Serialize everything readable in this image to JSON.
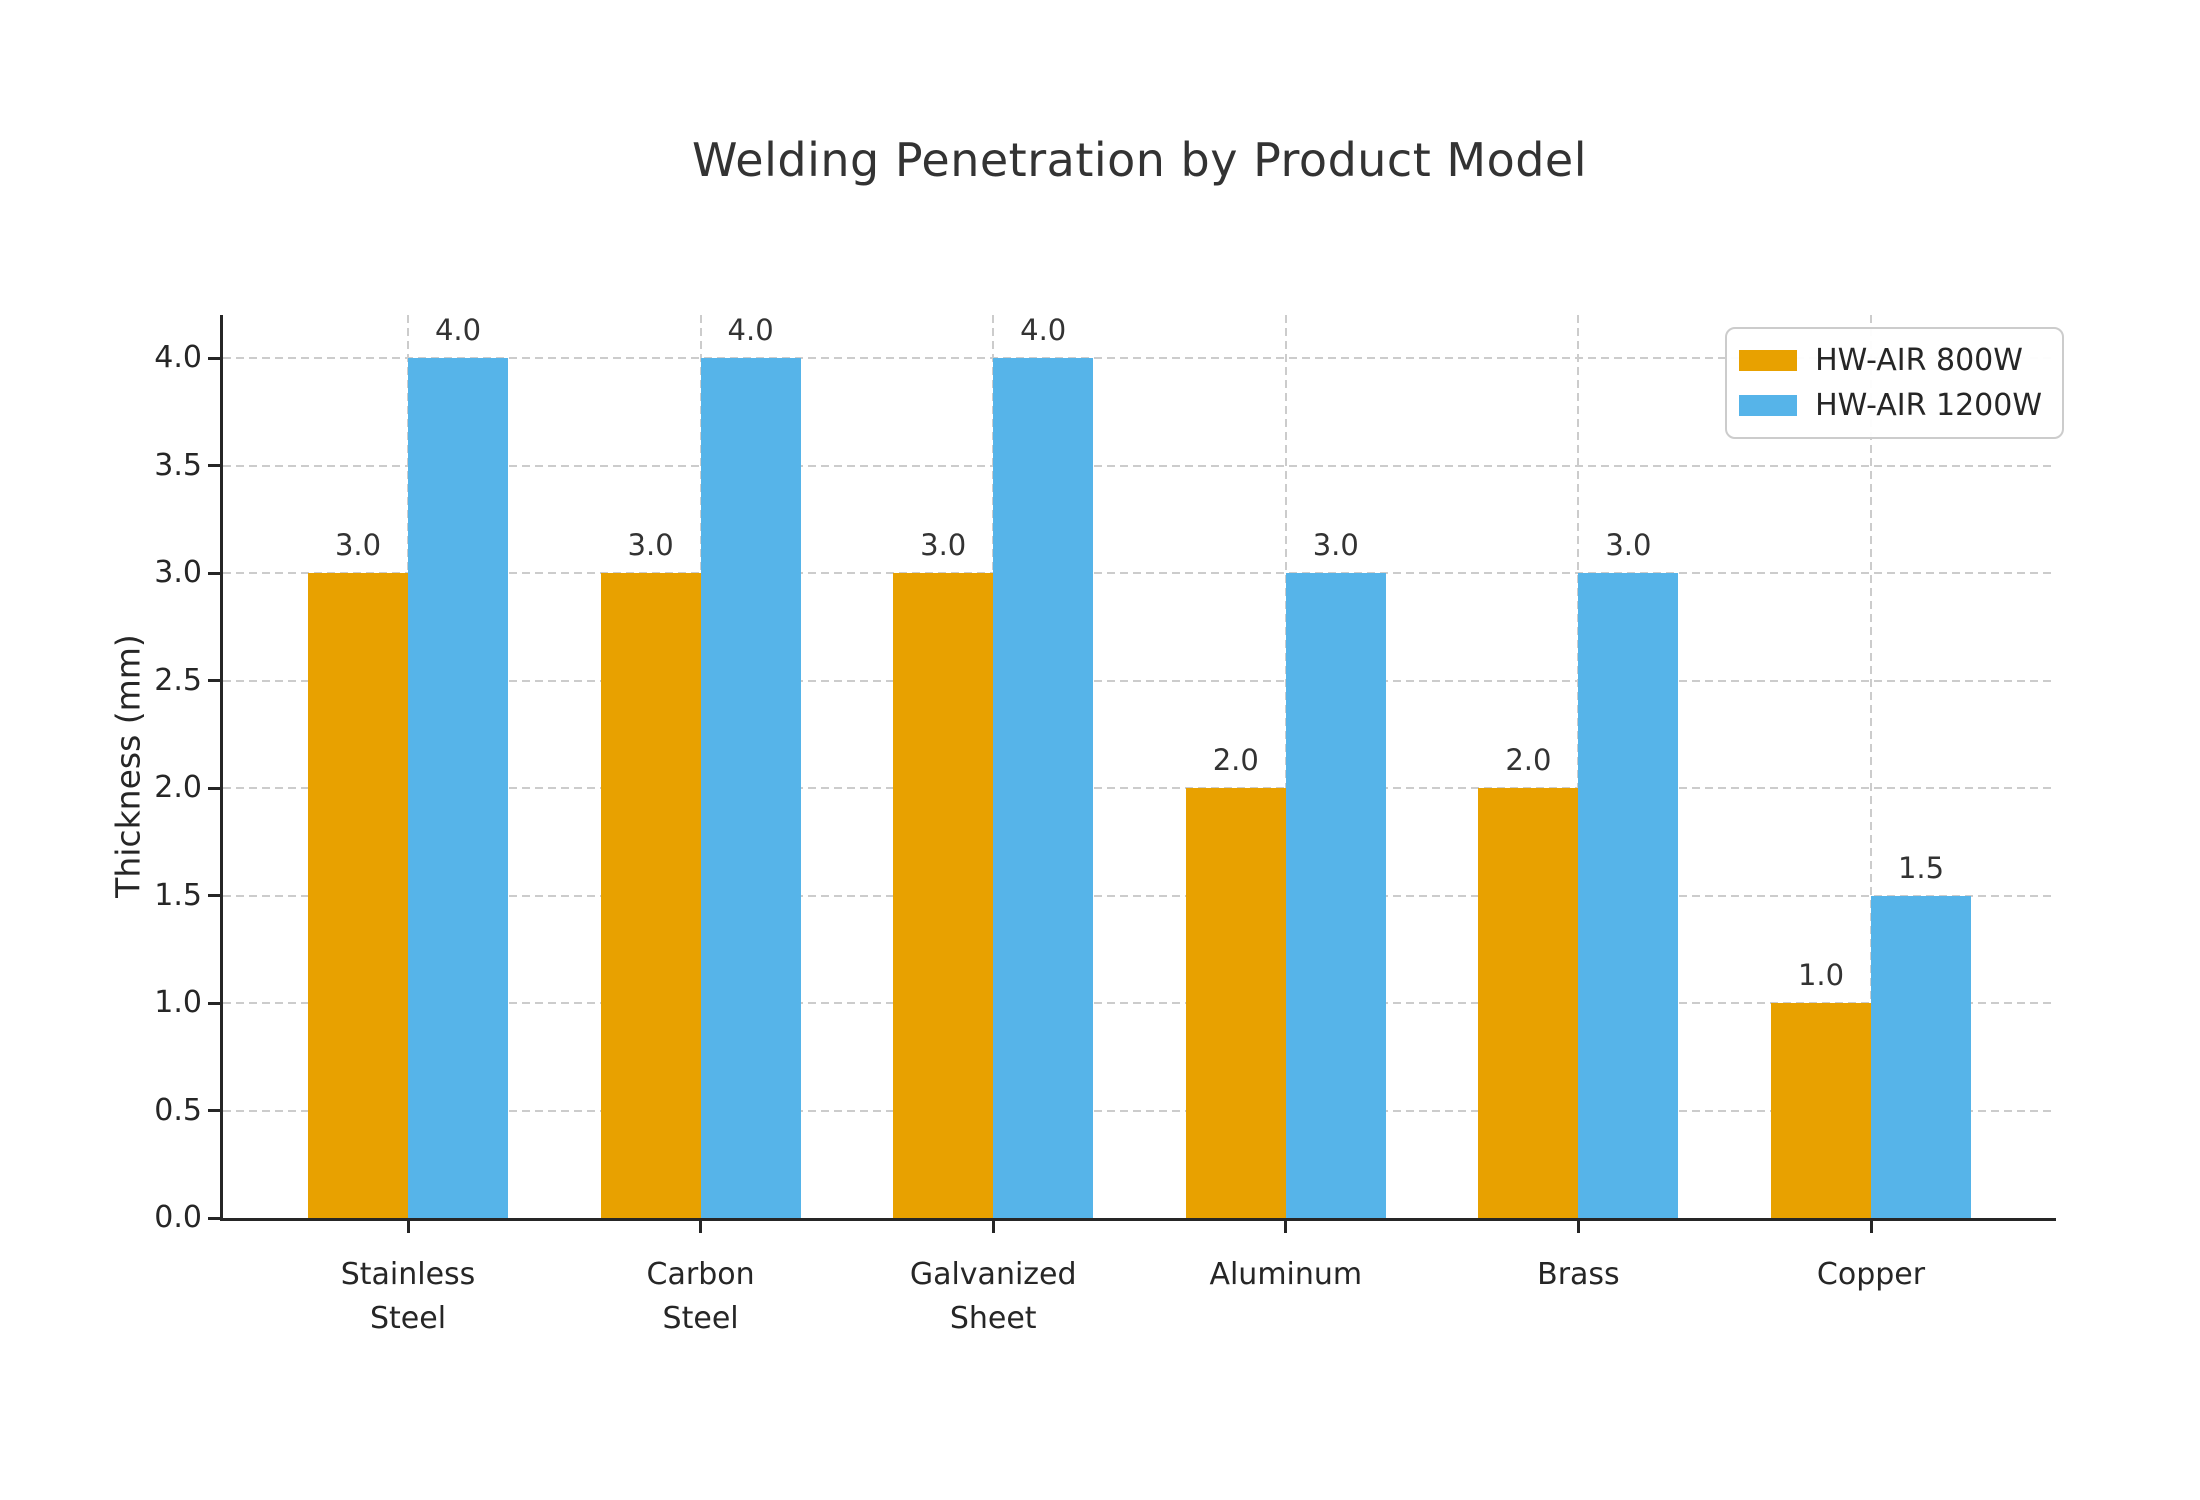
{
  "chart_data": {
    "type": "bar",
    "title": "Welding Penetration by Product Model",
    "xlabel": "",
    "ylabel": "Thickness (mm)",
    "categories": [
      "Stainless\nSteel",
      "Carbon\nSteel",
      "Galvanized\nSheet",
      "Aluminum",
      "Brass",
      "Copper"
    ],
    "series": [
      {
        "name": "HW-AIR 800W",
        "color": "#E8A100",
        "values": [
          3.0,
          3.0,
          3.0,
          2.0,
          2.0,
          1.0
        ]
      },
      {
        "name": "HW-AIR 1200W",
        "color": "#56B4E9",
        "values": [
          4.0,
          4.0,
          4.0,
          3.0,
          3.0,
          1.5
        ]
      }
    ],
    "ylim": [
      0.0,
      4.2
    ],
    "ytick_labels": [
      "0.0",
      "0.5",
      "1.0",
      "1.5",
      "2.0",
      "2.5",
      "3.0",
      "3.5",
      "4.0"
    ],
    "grid": {
      "horizontal": true,
      "vertical": true,
      "line_style": "dashed",
      "color": "#cccccc"
    },
    "bar_value_labels": true,
    "value_label_format": ".1f",
    "legend": {
      "position": "upper-right",
      "entries": [
        "HW-AIR 800W",
        "HW-AIR 1200W"
      ]
    }
  },
  "style": {
    "background": "#ffffff",
    "axis_color": "#262626",
    "tick_text_color": "#262626",
    "title_color": "#333333",
    "grid_color": "#cccccc",
    "legend_border_color": "#cccccc"
  }
}
